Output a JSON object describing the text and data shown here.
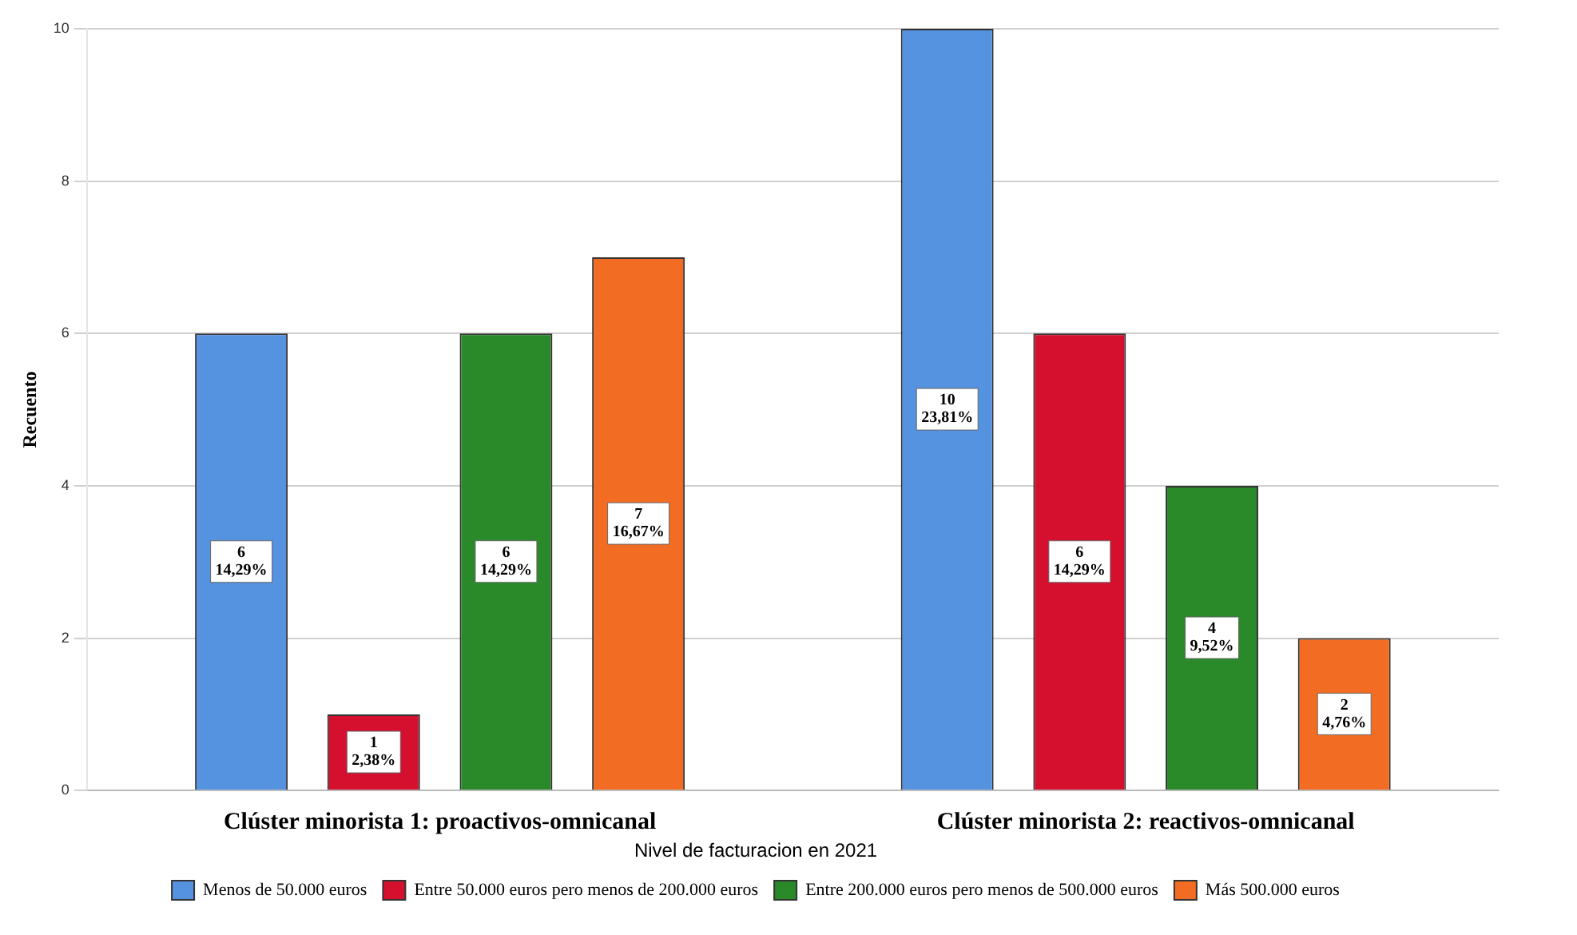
{
  "chart_data": {
    "type": "bar",
    "ylabel": "Recuento",
    "legend_title": "Nivel de facturacion en 2021",
    "categories": [
      "Clúster minorista 1: proactivos-omnicanal",
      "Clúster minorista 2: reactivos-omnicanal"
    ],
    "series": [
      {
        "name": "Menos de 50.000 euros",
        "color": "#5592e0",
        "values": [
          6,
          10
        ],
        "value_labels": [
          "6\n14,29%",
          "10\n23,81%"
        ]
      },
      {
        "name": "Entre 50.000 euros pero menos de 200.000 euros",
        "color": "#d5102f",
        "values": [
          1,
          6
        ],
        "value_labels": [
          "1\n2,38%",
          "6\n14,29%"
        ]
      },
      {
        "name": "Entre 200.000 euros pero menos de 500.000 euros",
        "color": "#2a8a2a",
        "values": [
          6,
          4
        ],
        "value_labels": [
          "6\n14,29%",
          "4\n9,52%"
        ]
      },
      {
        "name": "Más 500.000 euros",
        "color": "#f36c23",
        "values": [
          7,
          2
        ],
        "value_labels": [
          "7\n16,67%",
          "2\n4,76%"
        ]
      }
    ],
    "ylim": [
      0,
      10
    ],
    "yticks": [
      0,
      2,
      4,
      6,
      8,
      10
    ],
    "grid": "y",
    "legend": "bottom"
  }
}
